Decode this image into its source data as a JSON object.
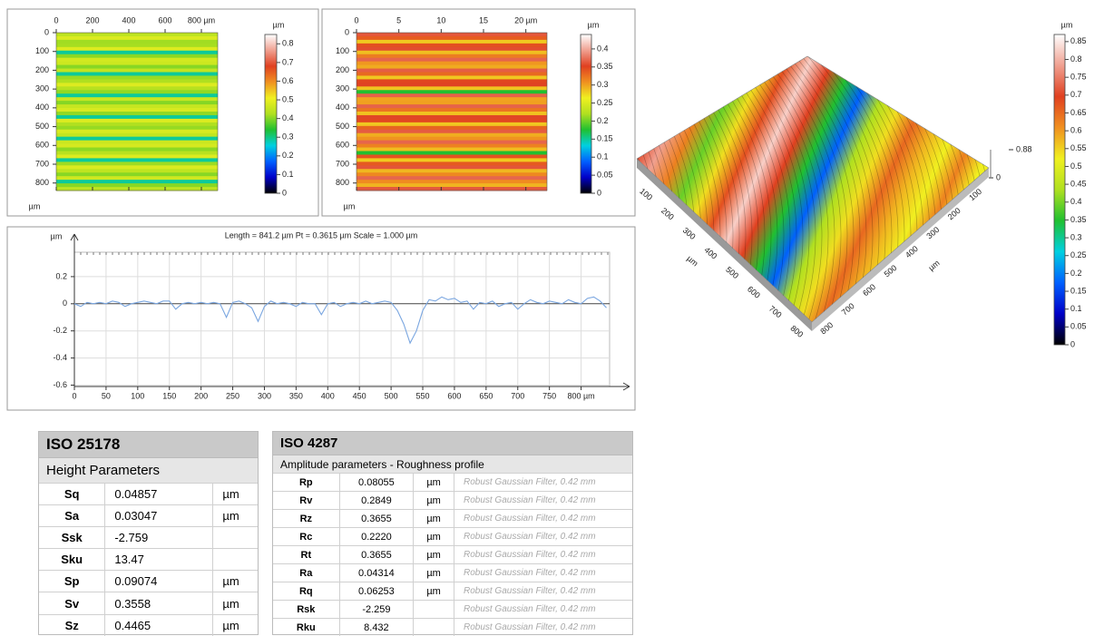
{
  "chart_data": [
    {
      "type": "heatmap",
      "xticks": [
        0,
        200,
        400,
        600,
        {
          "value": 800,
          "label": "800 µm"
        }
      ],
      "xlim": [
        0,
        890
      ],
      "yticks": [
        0,
        100,
        200,
        300,
        400,
        500,
        600,
        700,
        800
      ],
      "ylim": [
        0,
        840
      ],
      "ylabel": "µm",
      "colorscale": [
        "#000000",
        "#0000c8",
        "#0060ff",
        "#00d0e0",
        "#20c030",
        "#b0e020",
        "#f0f020",
        "#f09020",
        "#e04020",
        "#f0a090",
        "#ffffff"
      ],
      "colorbar": {
        "title": "µm",
        "lim": [
          0,
          0.85
        ],
        "ticks": [
          0,
          0.1,
          0.2,
          0.3,
          0.4,
          0.5,
          0.6,
          0.7,
          0.8
        ]
      }
    },
    {
      "type": "heatmap",
      "xticks": [
        0,
        5,
        10,
        15,
        {
          "value": 20,
          "label": "20 µm"
        }
      ],
      "xlim": [
        0,
        22.5
      ],
      "yticks": [
        0,
        100,
        200,
        300,
        400,
        500,
        600,
        700,
        800
      ],
      "ylim": [
        0,
        840
      ],
      "ylabel": "µm",
      "colorscale": [
        "#000000",
        "#0000c8",
        "#0060ff",
        "#00d0e0",
        "#20c030",
        "#b0e020",
        "#f0f020",
        "#f09020",
        "#e04020",
        "#f0a090",
        "#ffffff"
      ],
      "colorbar": {
        "title": "µm",
        "lim": [
          0,
          0.44
        ],
        "ticks": [
          0,
          0.05,
          0.1,
          0.15,
          0.2,
          0.25,
          0.3,
          0.35,
          0.4
        ]
      }
    },
    {
      "type": "line",
      "title": "Length = 841.2 µm  Pt = 0.3615 µm  Scale = 1.000 µm",
      "ylabel": "µm",
      "x": [
        0,
        10,
        20,
        30,
        40,
        50,
        60,
        70,
        80,
        90,
        100,
        110,
        120,
        130,
        140,
        150,
        160,
        170,
        180,
        190,
        200,
        210,
        220,
        230,
        240,
        250,
        260,
        270,
        280,
        290,
        300,
        310,
        320,
        330,
        340,
        350,
        360,
        370,
        380,
        390,
        400,
        410,
        420,
        430,
        440,
        450,
        460,
        470,
        480,
        490,
        500,
        510,
        520,
        530,
        540,
        550,
        560,
        570,
        580,
        590,
        600,
        610,
        620,
        630,
        640,
        650,
        660,
        670,
        680,
        690,
        700,
        710,
        720,
        730,
        740,
        750,
        760,
        770,
        780,
        790,
        800,
        810,
        820,
        830,
        840
      ],
      "series": [
        {
          "color": "#7aa6e0",
          "values": [
            0,
            -0.02,
            0.01,
            0,
            0.01,
            0,
            0.02,
            0.01,
            -0.02,
            0,
            0.01,
            0.02,
            0.01,
            0,
            0.02,
            0.02,
            -0.04,
            0,
            0.01,
            0,
            0.01,
            0,
            0.01,
            0,
            -0.1,
            0.01,
            0.02,
            0,
            -0.03,
            -0.13,
            -0.02,
            0.02,
            0,
            0.01,
            0,
            -0.02,
            0.01,
            0,
            0,
            -0.08,
            0,
            0.01,
            -0.02,
            0,
            0.01,
            0,
            0.02,
            0,
            0.01,
            0.02,
            0.01,
            -0.05,
            -0.15,
            -0.29,
            -0.2,
            -0.05,
            0.03,
            0.02,
            0.05,
            0.03,
            0.04,
            0.01,
            0.02,
            -0.04,
            0.01,
            0,
            0.02,
            -0.02,
            0,
            0.01,
            -0.04,
            0,
            0.03,
            0.01,
            0,
            0.02,
            0.01,
            0,
            0.03,
            0.01,
            0,
            0.04,
            0.05,
            0.02,
            -0.03
          ]
        }
      ],
      "xlim": [
        0,
        845
      ],
      "ylim": [
        -0.61,
        0.38
      ],
      "xticks": [
        0,
        50,
        100,
        150,
        200,
        250,
        300,
        350,
        400,
        450,
        500,
        550,
        600,
        650,
        700,
        750,
        {
          "value": 800,
          "label": "800 µm"
        }
      ],
      "yticks": [
        0.2,
        0,
        -0.2,
        -0.4,
        -0.6
      ],
      "grid": true
    },
    {
      "type": "surface",
      "xticks": [
        100,
        200,
        300,
        400,
        500,
        600,
        700,
        800
      ],
      "xlim": [
        0,
        880
      ],
      "xlabel": "µm",
      "yticks": [
        100,
        200,
        300,
        400,
        500,
        600,
        700,
        800
      ],
      "ylim": [
        0,
        880
      ],
      "ylabel": "µm",
      "zticks": [
        0,
        0.88
      ],
      "zlim": [
        0,
        0.88
      ],
      "colorscale": [
        "#000000",
        "#0000c8",
        "#0060ff",
        "#00d0e0",
        "#20c030",
        "#b0e020",
        "#f0f020",
        "#f09020",
        "#e04020",
        "#f0a090",
        "#ffffff"
      ],
      "colorbar": {
        "title": "µm",
        "lim": [
          0,
          0.87
        ],
        "ticks": [
          0,
          0.05,
          0.1,
          0.15,
          0.2,
          0.25,
          0.3,
          0.35,
          0.4,
          0.45,
          0.5,
          0.55,
          0.6,
          0.65,
          0.7,
          0.75,
          0.8,
          0.85
        ]
      }
    }
  ],
  "tables": [
    {
      "title": "ISO 25178",
      "subtitle": "Height Parameters",
      "rows": [
        {
          "name": "Sq",
          "value": "0.04857",
          "unit": "µm"
        },
        {
          "name": "Sa",
          "value": "0.03047",
          "unit": "µm"
        },
        {
          "name": "Ssk",
          "value": "-2.759"
        },
        {
          "name": "Sku",
          "value": "13.47"
        },
        {
          "name": "Sp",
          "value": "0.09074",
          "unit": "µm"
        },
        {
          "name": "Sv",
          "value": "0.3558",
          "unit": "µm"
        },
        {
          "name": "Sz",
          "value": "0.4465",
          "unit": "µm"
        }
      ]
    },
    {
      "title": "ISO 4287",
      "subtitle": "Amplitude parameters - Roughness profile",
      "rows": [
        {
          "name": "Rp",
          "value": "0.08055",
          "unit": "µm",
          "filter": "Robust Gaussian Filter, 0.42 mm"
        },
        {
          "name": "Rv",
          "value": "0.2849",
          "unit": "µm",
          "filter": "Robust Gaussian Filter, 0.42 mm"
        },
        {
          "name": "Rz",
          "value": "0.3655",
          "unit": "µm",
          "filter": "Robust Gaussian Filter, 0.42 mm"
        },
        {
          "name": "Rc",
          "value": "0.2220",
          "unit": "µm",
          "filter": "Robust Gaussian Filter, 0.42 mm"
        },
        {
          "name": "Rt",
          "value": "0.3655",
          "unit": "µm",
          "filter": "Robust Gaussian Filter, 0.42 mm"
        },
        {
          "name": "Ra",
          "value": "0.04314",
          "unit": "µm",
          "filter": "Robust Gaussian Filter, 0.42 mm"
        },
        {
          "name": "Rq",
          "value": "0.06253",
          "unit": "µm",
          "filter": "Robust Gaussian Filter, 0.42 mm"
        },
        {
          "name": "Rsk",
          "value": "-2.259",
          "filter": "Robust Gaussian Filter, 0.42 mm"
        },
        {
          "name": "Rku",
          "value": "8.432",
          "filter": "Robust Gaussian Filter, 0.42 mm"
        }
      ]
    }
  ]
}
